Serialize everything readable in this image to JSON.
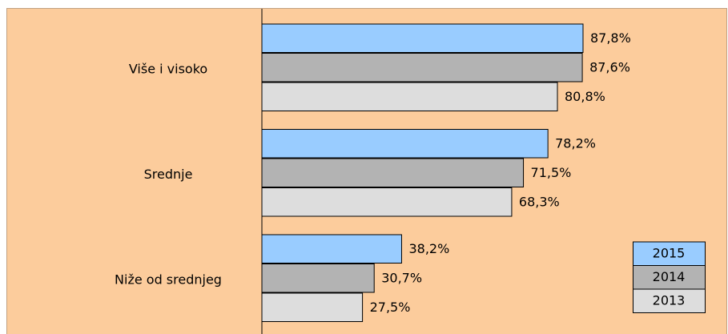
{
  "chart_data": {
    "type": "hbar",
    "categories": [
      "Više i visoko",
      "Srednje",
      "Niže od srednjeg"
    ],
    "series": [
      {
        "name": "2015",
        "color": "#99ccff",
        "values": [
          87.8,
          78.2,
          38.2
        ],
        "value_labels": [
          "87,8%",
          "78,2%",
          "38,2%"
        ]
      },
      {
        "name": "2014",
        "color": "#b3b3b3",
        "values": [
          87.6,
          71.5,
          30.7
        ],
        "value_labels": [
          "87,6%",
          "71,5%",
          "30,7%"
        ]
      },
      {
        "name": "2013",
        "color": "#dddddd",
        "values": [
          80.8,
          68.3,
          27.5
        ],
        "value_labels": [
          "80,8%",
          "68,3%",
          "27,5%"
        ]
      }
    ],
    "legend": "lower right"
  }
}
